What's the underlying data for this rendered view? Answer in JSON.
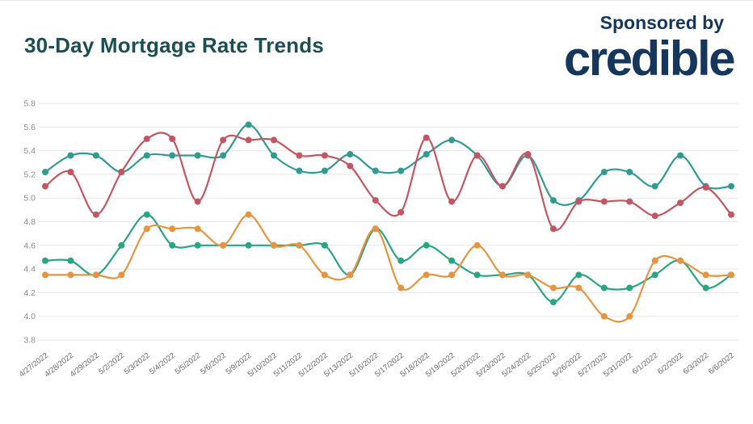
{
  "header": {
    "title": "30-Day Mortgage Rate Trends",
    "sponsored_by": "Sponsored by",
    "sponsor_logo": "credible",
    "title_color": "#1c4e52",
    "sponsor_color": "#16365c"
  },
  "axis_style": {
    "grid_color": "#e7e7e7",
    "y_label_color": "#8a8a8a",
    "x_label_color": "#666666"
  },
  "chart_data": {
    "type": "line",
    "title": "30-Day Mortgage Rate Trends",
    "xlabel": "",
    "ylabel": "",
    "ylim": [
      3.8,
      5.8
    ],
    "y_ticks": [
      5.8,
      5.6,
      5.4,
      5.2,
      5.0,
      4.8,
      4.6,
      4.4,
      4.2,
      4.0,
      3.8
    ],
    "grid": "horizontal",
    "legend_position": "none",
    "x_labels": [
      "4/27/2022",
      "4/28/2022",
      "4/29/2022",
      "5/2/2022",
      "5/3/2022",
      "5/4/2022",
      "5/5/2022",
      "5/6/2022",
      "5/9/2022",
      "5/10/2022",
      "5/11/2022",
      "5/12/2022",
      "5/13/2022",
      "5/16/2022",
      "5/17/2022",
      "5/18/2022",
      "5/19/2022",
      "5/20/2022",
      "5/23/2022",
      "5/24/2022",
      "5/25/2022",
      "5/26/2022",
      "5/27/2022",
      "5/31/2022",
      "6/1/2022",
      "6/2/2022",
      "6/3/2022",
      "6/6/2022"
    ],
    "series": [
      {
        "name": "teal-upper",
        "color": "#309b90",
        "values": [
          5.22,
          5.36,
          5.36,
          5.22,
          5.36,
          5.36,
          5.36,
          5.36,
          5.62,
          5.36,
          5.23,
          5.23,
          5.37,
          5.23,
          5.23,
          5.37,
          5.49,
          5.36,
          5.1,
          5.36,
          4.98,
          4.98,
          5.22,
          5.22,
          5.1,
          5.36,
          5.1,
          5.1
        ]
      },
      {
        "name": "red",
        "color": "#c25663",
        "values": [
          5.1,
          5.22,
          4.86,
          5.22,
          5.5,
          5.5,
          4.97,
          5.49,
          5.49,
          5.49,
          5.36,
          5.36,
          5.27,
          4.98,
          4.88,
          5.51,
          4.97,
          5.36,
          5.1,
          5.37,
          4.74,
          4.97,
          4.97,
          4.97,
          4.85,
          4.96,
          5.09,
          4.86
        ]
      },
      {
        "name": "teal-lower",
        "color": "#2aa584",
        "values": [
          4.47,
          4.47,
          4.35,
          4.6,
          4.86,
          4.6,
          4.6,
          4.6,
          4.6,
          4.6,
          4.6,
          4.6,
          4.35,
          4.74,
          4.47,
          4.6,
          4.47,
          4.35,
          4.35,
          4.35,
          4.12,
          4.35,
          4.24,
          4.24,
          4.35,
          4.47,
          4.24,
          4.35
        ]
      },
      {
        "name": "orange",
        "color": "#e5953f",
        "values": [
          4.35,
          4.35,
          4.35,
          4.35,
          4.74,
          4.74,
          4.74,
          4.6,
          4.86,
          4.6,
          4.6,
          4.35,
          4.35,
          4.74,
          4.24,
          4.35,
          4.35,
          4.6,
          4.35,
          4.35,
          4.24,
          4.24,
          4.0,
          4.0,
          4.47,
          4.47,
          4.35,
          4.35
        ]
      }
    ]
  }
}
